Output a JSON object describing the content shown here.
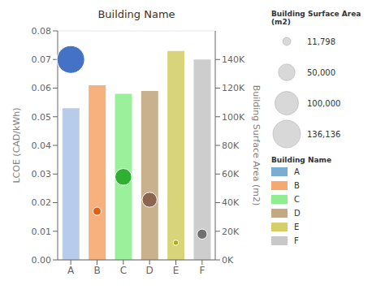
{
  "chart_data": {
    "type": "bar",
    "title": "Building Name",
    "categories": [
      "A",
      "B",
      "C",
      "D",
      "E",
      "F"
    ],
    "series": [
      {
        "type": "bar",
        "values": [
          0.053,
          0.061,
          0.058,
          0.059,
          0.073,
          0.07
        ],
        "colors": [
          "#aec6e8",
          "#f5a870",
          "#90ee90",
          "#c4a882",
          "#d4cf6a",
          "#c8c8c8"
        ]
      },
      {
        "type": "scatter",
        "values": [
          0.07,
          0.017,
          0.029,
          0.021,
          0.006,
          0.009
        ],
        "colors": [
          "#4472c4",
          "#e06010",
          "#30b030",
          "#8b6550",
          "#b0a820",
          "#707070"
        ],
        "sizes": [
          136136,
          11798,
          50000,
          40000,
          5000,
          18000
        ]
      }
    ],
    "ylabel": "LCOE (CAD/kWh)",
    "ylim": [
      0,
      0.08
    ],
    "yticks": [
      {
        "value": 0,
        "label": "0.00"
      },
      {
        "value": 0.01,
        "label": "0.01"
      },
      {
        "value": 0.02,
        "label": "0.02"
      },
      {
        "value": 0.03,
        "label": "0.03"
      },
      {
        "value": 0.04,
        "label": "0.04"
      },
      {
        "value": 0.05,
        "label": "0.05"
      },
      {
        "value": 0.06,
        "label": "0.06"
      },
      {
        "value": 0.07,
        "label": "0.07"
      },
      {
        "value": 0.08,
        "label": "0.08"
      }
    ],
    "y2label": "Building Surface Area (m2)",
    "y2lim": [
      0,
      160000
    ],
    "y2ticks": [
      {
        "value": 0,
        "label": "0K"
      },
      {
        "value": 20000,
        "label": "20K"
      },
      {
        "value": 40000,
        "label": "40K"
      },
      {
        "value": 60000,
        "label": "60K"
      },
      {
        "value": 80000,
        "label": "80K"
      },
      {
        "value": 100000,
        "label": "100K"
      },
      {
        "value": 120000,
        "label": "120K"
      },
      {
        "value": 140000,
        "label": "140K"
      }
    ],
    "grid": true,
    "legend": "right",
    "size_legend": {
      "title": "Building Surface Area (m2)",
      "values": [
        11798,
        50000,
        100000,
        136136
      ],
      "labels": [
        "11,798",
        "50,000",
        "100,000",
        "136,136"
      ]
    },
    "building_legend": {
      "title": "Building Name",
      "names": [
        "A",
        "B",
        "C",
        "D",
        "E",
        "F"
      ],
      "colors": [
        "#7badd4",
        "#f5a870",
        "#90ee90",
        "#c4a882",
        "#d4cf6a",
        "#c8c8c8"
      ]
    }
  }
}
